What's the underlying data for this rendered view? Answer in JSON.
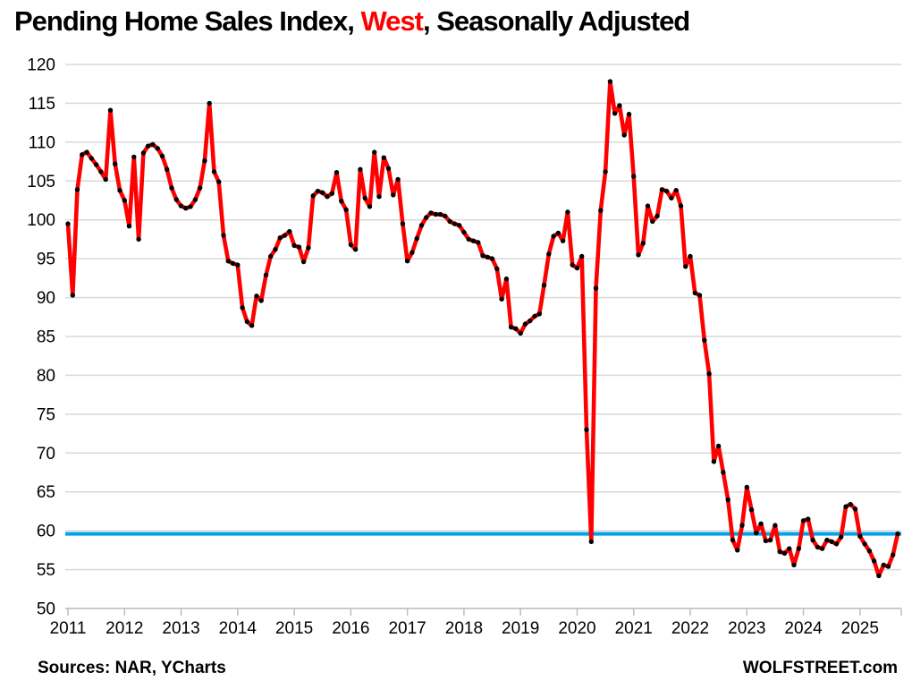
{
  "title": {
    "prefix": "Pending Home Sales Index, ",
    "highlight": "West",
    "suffix": ", Seasonally Adjusted"
  },
  "footer": {
    "sources": "Sources: NAR, YCharts",
    "brand": "WOLFSTREET.com"
  },
  "colors": {
    "line": "#ff0000",
    "marker": "#000000",
    "reference_line": "#00a3e6",
    "grid": "#d9d9d9",
    "axis_line": "#bfbfbf",
    "text": "#000000",
    "title_highlight": "#ff0000"
  },
  "chart_data": {
    "type": "line",
    "title": "Pending Home Sales Index, West, Seasonally Adjusted",
    "xlabel": "",
    "ylabel": "",
    "frequency": "monthly",
    "x_start": "2011-01",
    "x_end": "2025-09",
    "ylim": [
      50,
      120
    ],
    "ytick_step": 5,
    "y_ticks": [
      50,
      55,
      60,
      65,
      70,
      75,
      80,
      85,
      90,
      95,
      100,
      105,
      110,
      115,
      120
    ],
    "x_tick_labels": [
      "2011",
      "2012",
      "2013",
      "2014",
      "2015",
      "2016",
      "2017",
      "2018",
      "2019",
      "2020",
      "2021",
      "2022",
      "2023",
      "2024",
      "2025"
    ],
    "grid": true,
    "legend": false,
    "reference_line": {
      "value": 59.6
    },
    "series": [
      {
        "name": "Pending Home Sales Index, West",
        "values": [
          99.5,
          90.3,
          103.9,
          108.4,
          108.7,
          107.9,
          107.1,
          106.2,
          105.2,
          114.1,
          107.2,
          103.8,
          102.5,
          99.2,
          108.1,
          97.5,
          108.6,
          109.5,
          109.7,
          109.2,
          108.2,
          106.5,
          104.1,
          102.6,
          101.8,
          101.5,
          101.7,
          102.6,
          104.1,
          107.6,
          115.0,
          106.2,
          104.9,
          98.0,
          94.7,
          94.4,
          94.2,
          88.7,
          86.9,
          86.4,
          90.2,
          89.6,
          92.9,
          95.3,
          96.2,
          97.7,
          98.0,
          98.5,
          96.7,
          96.5,
          94.6,
          96.4,
          103.1,
          103.7,
          103.5,
          103.0,
          103.4,
          106.1,
          102.4,
          101.3,
          96.8,
          96.2,
          106.5,
          102.8,
          101.7,
          108.7,
          103.0,
          108.0,
          106.6,
          103.2,
          105.2,
          99.5,
          94.7,
          95.8,
          97.6,
          99.3,
          100.3,
          100.9,
          100.7,
          100.7,
          100.5,
          99.8,
          99.5,
          99.3,
          98.4,
          97.5,
          97.3,
          97.1,
          95.4,
          95.2,
          95.0,
          93.7,
          89.8,
          92.4,
          86.2,
          86.0,
          85.4,
          86.6,
          87.0,
          87.6,
          87.9,
          91.6,
          95.6,
          97.9,
          98.3,
          97.3,
          101.0,
          94.2,
          93.8,
          95.3,
          73.0,
          58.6,
          91.2,
          101.2,
          106.2,
          117.8,
          113.7,
          114.7,
          110.9,
          113.6,
          105.6,
          95.5,
          97.0,
          101.8,
          99.8,
          100.5,
          103.9,
          103.7,
          102.8,
          103.8,
          101.8,
          94.0,
          95.3,
          90.6,
          90.3,
          84.5,
          80.2,
          68.9,
          70.9,
          67.5,
          64.0,
          58.8,
          57.5,
          60.7,
          65.6,
          62.7,
          59.7,
          60.9,
          58.7,
          58.8,
          60.7,
          57.3,
          57.1,
          57.7,
          55.6,
          57.7,
          61.3,
          61.5,
          58.8,
          57.9,
          57.7,
          58.8,
          58.6,
          58.3,
          59.2,
          63.1,
          63.4,
          62.8,
          59.3,
          58.3,
          57.4,
          56.1,
          54.2,
          55.6,
          55.4,
          56.9,
          59.6
        ]
      }
    ]
  }
}
